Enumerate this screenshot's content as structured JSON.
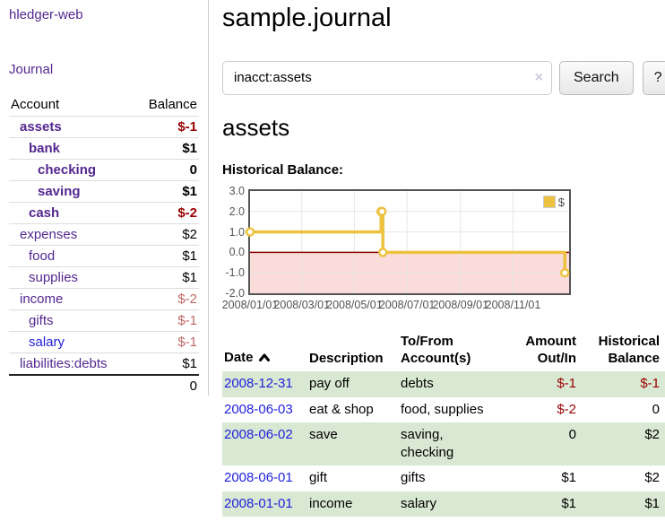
{
  "sidebar": {
    "app_title": "hledger-web",
    "journal_label": "Journal",
    "accounts_table": {
      "headers": {
        "account": "Account",
        "balance": "Balance"
      },
      "rows": [
        {
          "name": "assets",
          "balance": "$-1"
        },
        {
          "name": "bank",
          "balance": "$1"
        },
        {
          "name": "checking",
          "balance": "0"
        },
        {
          "name": "saving",
          "balance": "$1"
        },
        {
          "name": "cash",
          "balance": "$-2"
        },
        {
          "name": "expenses",
          "balance": "$2"
        },
        {
          "name": "food",
          "balance": "$1"
        },
        {
          "name": "supplies",
          "balance": "$1"
        },
        {
          "name": "income",
          "balance": "$-2"
        },
        {
          "name": "gifts",
          "balance": "$-1"
        },
        {
          "name": "salary",
          "balance": "$-1"
        },
        {
          "name": "liabilities:debts",
          "balance": "$1"
        }
      ],
      "total": "0"
    }
  },
  "main": {
    "title": "sample.journal",
    "search": {
      "value": "inacct:assets",
      "clear_label": "×",
      "button_label": "Search",
      "help_label": "?"
    },
    "account_heading": "assets",
    "chart_label": "Historical Balance:",
    "register_table": {
      "headers": {
        "date": "Date",
        "description": "Description",
        "accounts": "To/From Account(s)",
        "amount": "Amount Out/In",
        "balance": "Historical Balance"
      },
      "rows": [
        {
          "date": "2008-12-31",
          "description": "pay off",
          "accounts": "debts",
          "amount": "$-1",
          "balance": "$-1"
        },
        {
          "date": "2008-06-03",
          "description": "eat & shop",
          "accounts": "food, supplies",
          "amount": "$-2",
          "balance": "0"
        },
        {
          "date": "2008-06-02",
          "description": "save",
          "accounts": "saving, checking",
          "amount": "0",
          "balance": "$2"
        },
        {
          "date": "2008-06-01",
          "description": "gift",
          "accounts": "gifts",
          "amount": "$1",
          "balance": "$2"
        },
        {
          "date": "2008-01-01",
          "description": "income",
          "accounts": "salary",
          "amount": "$1",
          "balance": "$1"
        }
      ]
    }
  },
  "chart_data": {
    "type": "line",
    "title": "Historical Balance:",
    "series": [
      {
        "name": "$",
        "color": "#EDC240",
        "steps": true,
        "points_day_value": [
          [
            0,
            1
          ],
          [
            152,
            2
          ],
          [
            153,
            2
          ],
          [
            154,
            0
          ],
          [
            365,
            -1
          ]
        ]
      }
    ],
    "xlim": [
      0,
      370
    ],
    "ylim": [
      -2,
      3
    ],
    "x_ticks": [
      {
        "day": 0,
        "label": "2008/01/01"
      },
      {
        "day": 60,
        "label": "2008/03/01"
      },
      {
        "day": 121,
        "label": "2008/05/01"
      },
      {
        "day": 182,
        "label": "2008/07/01"
      },
      {
        "day": 244,
        "label": "2008/09/01"
      },
      {
        "day": 305,
        "label": "2008/11/01"
      }
    ],
    "y_ticks": [
      {
        "v": 3,
        "label": "3.0"
      },
      {
        "v": 2,
        "label": "2.0"
      },
      {
        "v": 1,
        "label": "1.0"
      },
      {
        "v": 0,
        "label": "0.0"
      },
      {
        "v": -1,
        "label": "-1.0"
      },
      {
        "v": -2,
        "label": "-2.0"
      }
    ],
    "legend": {
      "label": "$",
      "swatch_color": "#EDC240",
      "position": "top-right"
    },
    "grid": true,
    "grid_color": "#e6e6e6",
    "border_color": "#545454",
    "zero_line_color": "#8B0000",
    "negative_region_color": "#FADCDA"
  },
  "colors": {
    "sidebar_link_purple": "#54278F",
    "unvisited_link_blue": "#2222DD",
    "negative_strong_red": "#990000",
    "negative_soft_red": "#C06868",
    "row_stripe_green": "#D9E8D2",
    "series_gold": "#EDC240"
  }
}
